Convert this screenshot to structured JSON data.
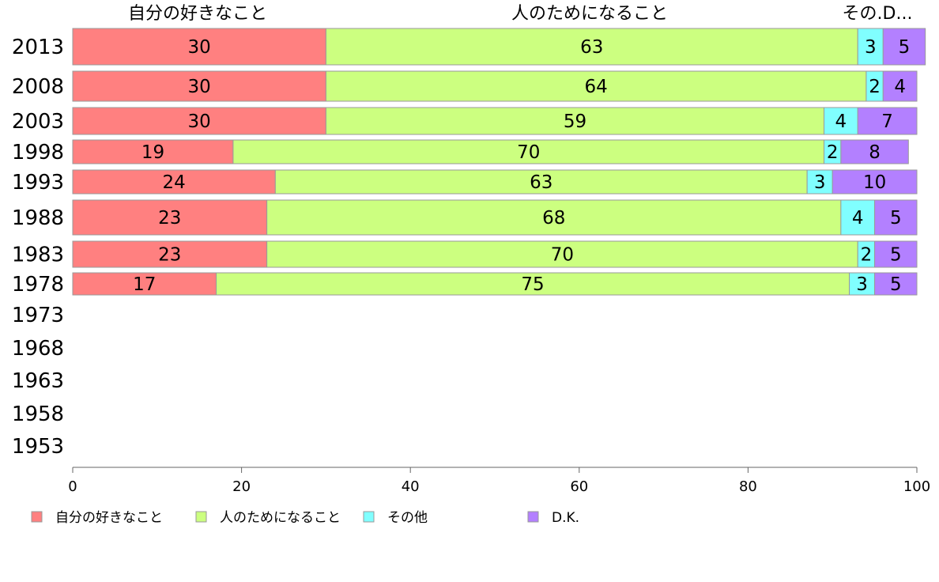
{
  "chart_data": {
    "type": "bar",
    "orientation": "horizontal",
    "stacked": true,
    "categories": [
      "2013",
      "2008",
      "2003",
      "1998",
      "1993",
      "1988",
      "1983",
      "1978",
      "1973",
      "1968",
      "1963",
      "1958",
      "1953"
    ],
    "series": [
      {
        "name": "自分の好きなこと",
        "color": "#ff8080",
        "values": [
          30,
          30,
          30,
          19,
          24,
          23,
          23,
          17,
          null,
          null,
          null,
          null,
          null
        ]
      },
      {
        "name": "人のためになること",
        "color": "#ccff80",
        "values": [
          63,
          64,
          59,
          70,
          63,
          68,
          70,
          75,
          null,
          null,
          null,
          null,
          null
        ]
      },
      {
        "name": "その他",
        "color": "#80ffff",
        "values": [
          3,
          2,
          4,
          2,
          3,
          4,
          2,
          3,
          null,
          null,
          null,
          null,
          null
        ]
      },
      {
        "name": "D.K.",
        "color": "#b380ff",
        "values": [
          5,
          4,
          7,
          8,
          10,
          5,
          5,
          5,
          null,
          null,
          null,
          null,
          null
        ]
      }
    ],
    "column_headers": [
      "自分の好きなこと",
      "人のためになること",
      "その.D..."
    ],
    "xlim": [
      0,
      100
    ],
    "xticks": [
      0,
      20,
      40,
      60,
      80,
      100
    ],
    "legend_position": "bottom",
    "grid": false
  }
}
